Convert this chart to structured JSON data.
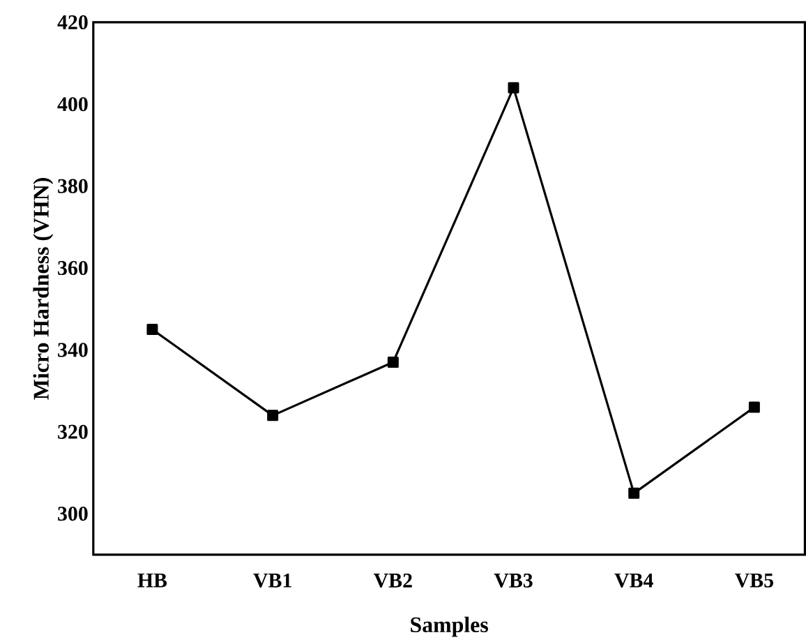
{
  "chart_data": {
    "type": "line",
    "xlabel": "Samples",
    "ylabel": "Micro Hardness (VHN)",
    "categories": [
      "HB",
      "VB1",
      "VB2",
      "VB3",
      "VB4",
      "VB5"
    ],
    "series": [
      {
        "color": "#000000",
        "values": [
          345,
          324,
          337,
          404,
          305,
          326
        ]
      }
    ],
    "ylim": [
      290,
      420
    ],
    "yticks": [
      300,
      320,
      340,
      360,
      380,
      400,
      420
    ],
    "marker": "square",
    "line_style": "solid",
    "grid": false
  }
}
